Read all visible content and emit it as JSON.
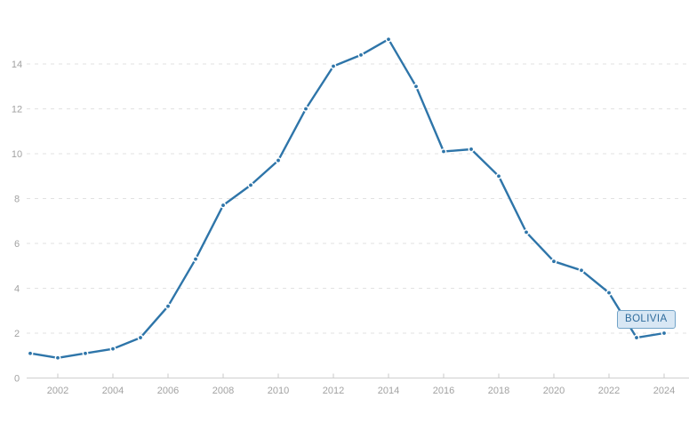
{
  "chart_data": {
    "type": "line",
    "title": "",
    "xlabel": "",
    "ylabel": "",
    "x": [
      2001,
      2002,
      2003,
      2004,
      2005,
      2006,
      2007,
      2008,
      2009,
      2010,
      2011,
      2012,
      2013,
      2014,
      2015,
      2016,
      2017,
      2018,
      2019,
      2020,
      2021,
      2022,
      2023,
      2024
    ],
    "values": [
      1.1,
      0.9,
      1.1,
      1.3,
      1.8,
      3.2,
      5.3,
      7.7,
      8.6,
      9.7,
      12.0,
      13.9,
      14.4,
      15.1,
      13.0,
      10.1,
      10.2,
      9.0,
      6.5,
      5.2,
      4.8,
      3.8,
      1.8,
      2.0
    ],
    "series_name": "BOLIVIA",
    "ylim": [
      0,
      16
    ],
    "yticks": [
      0,
      2,
      4,
      6,
      8,
      10,
      12,
      14
    ],
    "xtick_labels": [
      "2002",
      "2004",
      "2006",
      "2008",
      "2010",
      "2012",
      "2014",
      "2016",
      "2018",
      "2020",
      "2022",
      "2024"
    ],
    "grid": "horizontal-dashed",
    "legend_position": "none",
    "annotation": {
      "label": "BOLIVIA",
      "x": 2023,
      "y": 1.8
    },
    "colors": {
      "line": "#2e75a9",
      "marker": "#2e75a9",
      "marker_halo": "#ffffff",
      "gridline": "#e2e2e2",
      "axis_line": "#cfcfcf",
      "tick_mark": "#c9c9c9",
      "tick_label": "#a2a2a2",
      "badge_fill": "#d8e7f4",
      "badge_border": "#72a3c8",
      "badge_text": "#2e6b9c"
    }
  }
}
